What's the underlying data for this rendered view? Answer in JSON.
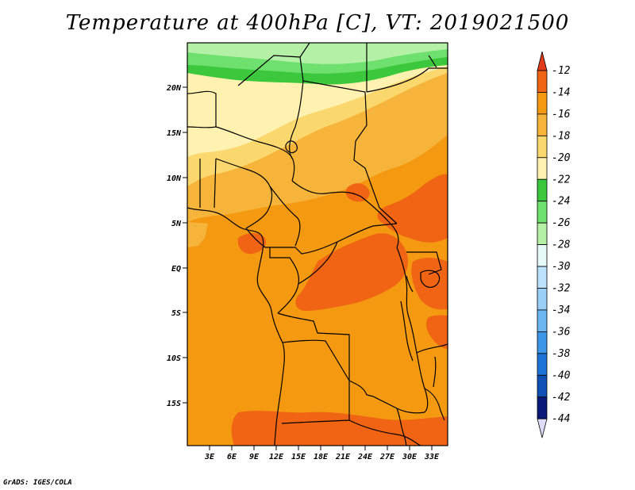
{
  "title": "Temperature at 400hPa [C], VT: 2019021500",
  "credit": "GrADS: IGES/COLA",
  "lat_labels": [
    "20N",
    "15N",
    "10N",
    "5N",
    "EQ",
    "5S",
    "10S",
    "15S"
  ],
  "lon_labels": [
    "3E",
    "6E",
    "9E",
    "12E",
    "15E",
    "18E",
    "21E",
    "24E",
    "27E",
    "30E",
    "33E"
  ],
  "colorbar": {
    "labels": [
      "-12",
      "-14",
      "-16",
      "-18",
      "-20",
      "-22",
      "-24",
      "-26",
      "-28",
      "-30",
      "-32",
      "-34",
      "-36",
      "-38",
      "-40",
      "-42",
      "-44"
    ],
    "colors": [
      "#e33a1a",
      "#f06414",
      "#f59a10",
      "#f7b43a",
      "#fbd86e",
      "#fff2b0",
      "#3cc83c",
      "#6ee06e",
      "#b4f0a6",
      "#e6fbf8",
      "#bce3fb",
      "#9ad0f8",
      "#6cb6f2",
      "#3e96e6",
      "#1e74d6",
      "#0e50b4",
      "#0a1878"
    ],
    "top_arrow_color": "#e33a1a",
    "bottom_arrow_color": "#dcdcf8"
  }
}
